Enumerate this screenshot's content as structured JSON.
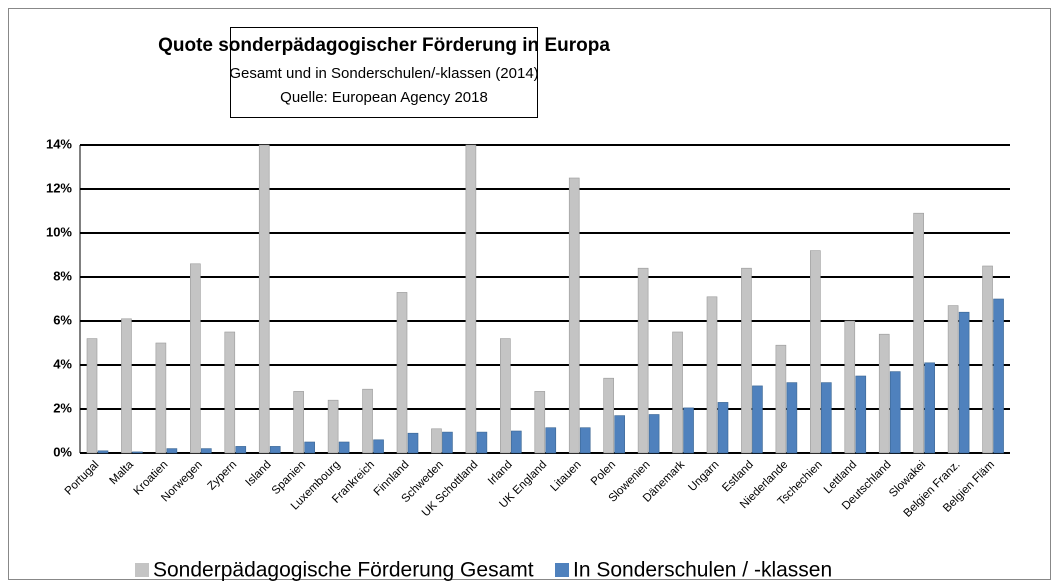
{
  "chart_data": {
    "type": "bar",
    "title": "Quote sonderpädagogischer Förderung in  Europa",
    "subtitle": "Gesamt und in Sonderschulen/-klassen (2014)",
    "source": "Quelle: European Agency 2018",
    "categories": [
      "Portugal",
      "Malta",
      "Kroatien",
      "Norwegen",
      "Zypern",
      "Island",
      "Spanien",
      "Luxembourg",
      "Frankreich",
      "Finnland",
      "Schweden",
      "UK Schottland",
      "Irland",
      "UK England",
      "Litauen",
      "Polen",
      "Slowenien",
      "Dänemark",
      "Ungarn",
      "Estland",
      "Niederlande",
      "Tschechien",
      "Lettland",
      "Deutschland",
      "Slowakei",
      "Belgien Franz.",
      "Belgien Fläm"
    ],
    "series": [
      {
        "name": "Sonderpädagogische Förderung  Gesamt",
        "color": "#c4c4c4",
        "values": [
          5.2,
          6.1,
          5.0,
          8.6,
          5.5,
          14,
          2.8,
          2.4,
          2.9,
          7.3,
          1.1,
          14,
          5.2,
          2.8,
          12.5,
          3.4,
          8.4,
          5.5,
          7.1,
          8.4,
          4.9,
          9.2,
          6.0,
          5.4,
          10.9,
          6.7,
          8.5
        ]
      },
      {
        "name": "In Sonderschulen / -klassen",
        "color": "#4f81bd",
        "values": [
          0.1,
          0.05,
          0.2,
          0.2,
          0.3,
          0.3,
          0.5,
          0.5,
          0.6,
          0.9,
          0.95,
          0.95,
          1.0,
          1.15,
          1.15,
          1.7,
          1.75,
          2.05,
          2.3,
          3.05,
          3.2,
          3.2,
          3.5,
          3.7,
          4.1,
          6.4,
          7.0
        ]
      }
    ],
    "ylim": [
      0,
      14
    ],
    "yticks": [
      {
        "value": 0,
        "label": "0%"
      },
      {
        "value": 2,
        "label": "2%"
      },
      {
        "value": 4,
        "label": "4%"
      },
      {
        "value": 6,
        "label": "6%"
      },
      {
        "value": 8,
        "label": "8%"
      },
      {
        "value": 10,
        "label": "10%"
      },
      {
        "value": 12,
        "label": "12%"
      },
      {
        "value": 14,
        "label": "14%"
      }
    ],
    "grid": true
  }
}
